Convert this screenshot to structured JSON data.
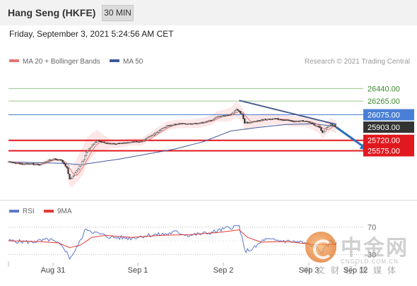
{
  "header": {
    "title": "Hang Seng (HKFE)",
    "interval": "30 MIN"
  },
  "datetime": "Friday, September 3, 2021 5:24:56 AM CET",
  "legend": {
    "ma20_label": "MA 20 + Bollinger Bands",
    "ma50_label": "MA 50",
    "source": "Research © 2021 Trading Central"
  },
  "colors": {
    "ma20": "#e57373",
    "bollinger_fill": "#fde4e4",
    "ma50": "#3f5a9c",
    "candle": "#333333",
    "resistance": "#9bc48a",
    "pivot": "#4a7fd6",
    "support": "#e0191f",
    "price_tag": "#333333",
    "trendline": "#4a5d8f",
    "arrow": "#2d6fb5",
    "rsi": "#5b78c9",
    "rsi_ma": "#e53935"
  },
  "chart_data": [
    {
      "type": "candlestick",
      "ylim": [
        25050,
        26620
      ],
      "x_labels": [
        "Aug 31",
        "Sep 1",
        "Sep 2",
        "Sep 3",
        "Sep 12"
      ],
      "levels": [
        {
          "value": 26440.0,
          "label": "26440.00",
          "kind": "resistance"
        },
        {
          "value": 26265.0,
          "label": "26265.00",
          "kind": "resistance"
        },
        {
          "value": 26075.0,
          "label": "26075.00",
          "kind": "pivot"
        },
        {
          "value": 25903.0,
          "label": "25903.00",
          "kind": "last"
        },
        {
          "value": 25720.0,
          "label": "25720.00",
          "kind": "support"
        },
        {
          "value": 25575.0,
          "label": "25575.00",
          "kind": "support"
        }
      ],
      "close_anchors": [
        [
          0,
          25420
        ],
        [
          4,
          25410
        ],
        [
          10,
          25390
        ],
        [
          16,
          25395
        ],
        [
          22,
          25380
        ],
        [
          26,
          25420
        ],
        [
          32,
          25460
        ],
        [
          38,
          25440
        ],
        [
          42,
          25330
        ],
        [
          44,
          25180
        ],
        [
          46,
          25210
        ],
        [
          50,
          25330
        ],
        [
          54,
          25450
        ],
        [
          56,
          25560
        ],
        [
          60,
          25650
        ],
        [
          64,
          25720
        ],
        [
          70,
          25680
        ],
        [
          78,
          25670
        ],
        [
          88,
          25700
        ],
        [
          96,
          25700
        ],
        [
          102,
          25780
        ],
        [
          108,
          25850
        ],
        [
          114,
          25920
        ],
        [
          122,
          25950
        ],
        [
          130,
          25950
        ],
        [
          138,
          25960
        ],
        [
          146,
          26000
        ],
        [
          150,
          26050
        ],
        [
          154,
          26060
        ],
        [
          160,
          26080
        ],
        [
          164,
          26150
        ],
        [
          168,
          26080
        ],
        [
          170,
          25960
        ],
        [
          176,
          25980
        ],
        [
          184,
          26010
        ],
        [
          192,
          26020
        ],
        [
          200,
          26000
        ],
        [
          206,
          25980
        ],
        [
          212,
          25990
        ],
        [
          218,
          25960
        ],
        [
          224,
          25890
        ],
        [
          226,
          25820
        ],
        [
          228,
          25880
        ],
        [
          232,
          25940
        ],
        [
          236,
          25903
        ]
      ],
      "bollinger_halfwidth": [
        [
          0,
          20
        ],
        [
          40,
          25
        ],
        [
          46,
          140
        ],
        [
          54,
          200
        ],
        [
          62,
          160
        ],
        [
          74,
          60
        ],
        [
          92,
          50
        ],
        [
          110,
          60
        ],
        [
          130,
          60
        ],
        [
          150,
          70
        ],
        [
          166,
          110
        ],
        [
          180,
          90
        ],
        [
          200,
          70
        ],
        [
          220,
          80
        ],
        [
          236,
          90
        ]
      ],
      "ma50": [
        [
          0,
          25420
        ],
        [
          20,
          25410
        ],
        [
          40,
          25400
        ],
        [
          52,
          25380
        ],
        [
          62,
          25410
        ],
        [
          80,
          25460
        ],
        [
          100,
          25530
        ],
        [
          120,
          25600
        ],
        [
          140,
          25700
        ],
        [
          160,
          25850
        ],
        [
          180,
          25900
        ],
        [
          200,
          25940
        ],
        [
          220,
          25950
        ],
        [
          236,
          25910
        ]
      ],
      "trendline": [
        [
          166,
          26275
        ],
        [
          236,
          25940
        ]
      ],
      "arrow": [
        [
          236,
          25900
        ],
        [
          252,
          25585
        ]
      ]
    },
    {
      "type": "line",
      "title": "RSI",
      "series": [
        {
          "name": "RSI",
          "anchors": [
            [
              0,
              50
            ],
            [
              16,
              48
            ],
            [
              30,
              52
            ],
            [
              40,
              40
            ],
            [
              44,
              25
            ],
            [
              48,
              35
            ],
            [
              56,
              68
            ],
            [
              62,
              62
            ],
            [
              74,
              55
            ],
            [
              88,
              54
            ],
            [
              100,
              58
            ],
            [
              114,
              60
            ],
            [
              120,
              63
            ],
            [
              130,
              58
            ],
            [
              146,
              62
            ],
            [
              158,
              69
            ],
            [
              166,
              72
            ],
            [
              170,
              35
            ],
            [
              176,
              38
            ],
            [
              184,
              52
            ],
            [
              196,
              50
            ],
            [
              210,
              48
            ],
            [
              220,
              42
            ],
            [
              226,
              33
            ],
            [
              232,
              50
            ],
            [
              236,
              46
            ]
          ]
        },
        {
          "name": "9MA",
          "anchors": [
            [
              0,
              50
            ],
            [
              20,
              49
            ],
            [
              36,
              47
            ],
            [
              44,
              40
            ],
            [
              52,
              44
            ],
            [
              60,
              55
            ],
            [
              70,
              58
            ],
            [
              88,
              55
            ],
            [
              110,
              58
            ],
            [
              130,
              59
            ],
            [
              150,
              62
            ],
            [
              166,
              66
            ],
            [
              172,
              55
            ],
            [
              182,
              48
            ],
            [
              200,
              49
            ],
            [
              222,
              44
            ],
            [
              236,
              45
            ]
          ]
        }
      ],
      "ylim": [
        20,
        80
      ],
      "level_labels": [
        "70",
        "30"
      ]
    }
  ],
  "watermark": {
    "text": "中金网",
    "url": "CNGOLD.COM.CN",
    "sub": "中文财经新媒体"
  }
}
